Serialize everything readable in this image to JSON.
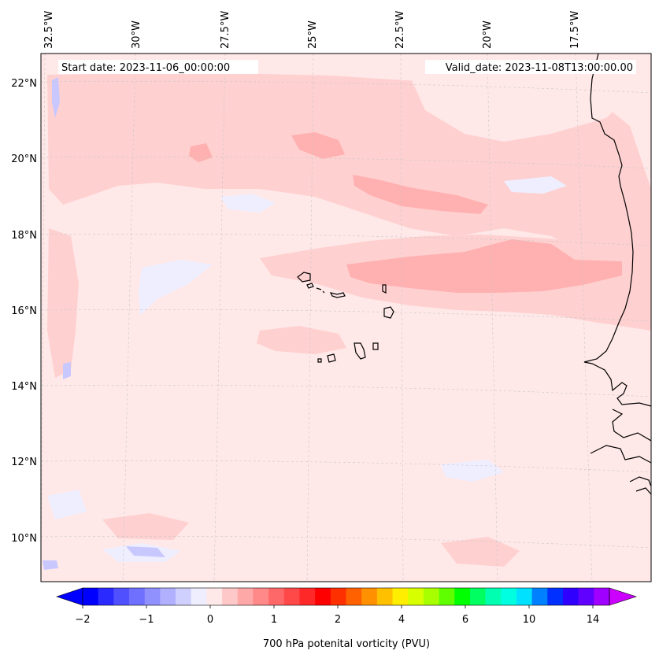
{
  "header": {
    "start_date": "Start date: 2023-11-06_00:00:00",
    "valid_date": "Valid_date: 2023-11-08T13:00:00.00"
  },
  "axes": {
    "lon_labels": [
      "32.5°W",
      "30°W",
      "27.5°W",
      "25°W",
      "22.5°W",
      "20°W",
      "17.5°W"
    ],
    "lat_labels": [
      "22°N",
      "20°N",
      "18°N",
      "16°N",
      "14°N",
      "12°N",
      "10°N"
    ],
    "gridlines": true
  },
  "colorbar": {
    "label": "700 hPa potenital vorticity (PVU)",
    "tick_labels": [
      "−2",
      "−1",
      "0",
      "1",
      "2",
      "4",
      "6",
      "10",
      "14"
    ],
    "colors": [
      "#0000ff",
      "#2a2aff",
      "#5050ff",
      "#7070ff",
      "#9090ff",
      "#b0b0ff",
      "#d0d0ff",
      "#eeeeff",
      "#ffe8e8",
      "#ffc8c8",
      "#ffa8a8",
      "#ff8888",
      "#ff6868",
      "#ff4848",
      "#ff2828",
      "#ff0000",
      "#ff3000",
      "#ff6000",
      "#ff9000",
      "#ffc000",
      "#ffee00",
      "#d8ff00",
      "#a8ff00",
      "#60ff00",
      "#00ff00",
      "#00ff60",
      "#00ffb0",
      "#00ffe0",
      "#00e0ff",
      "#0080ff",
      "#0030ff",
      "#3000ff",
      "#6000ff",
      "#a000ff"
    ],
    "extend_low_color": "#0000ff",
    "extend_high_color": "#cc00ff"
  },
  "map_colors": {
    "background": "#ffe8e8",
    "band_light": "#ffd0d0",
    "band_mid": "#ffb0b0",
    "negative": "#eeeeff",
    "negative_strong": "#c8c8ff",
    "coast": "#000000"
  }
}
